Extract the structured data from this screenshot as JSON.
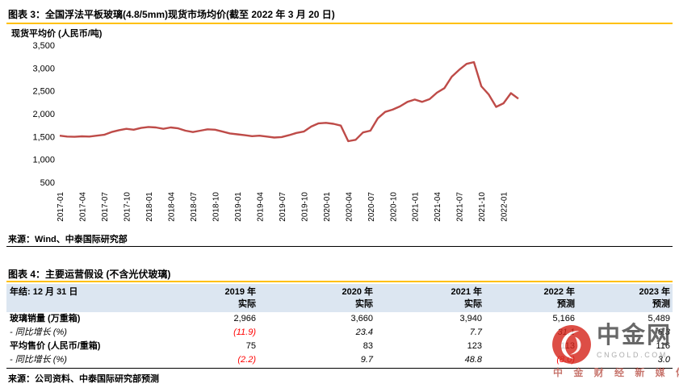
{
  "colors": {
    "line": "#BE4B48",
    "rule_yellow": "#FFC000",
    "table_header_bg": "#DCE6F1",
    "negative": "#FF0000"
  },
  "figure3": {
    "title": "图表 3：全国浮法平板玻璃(4.8/5mm)现货市场均价(截至 2022 年 3 月 20 日)",
    "axis_label": "现货平均价 (人民币/吨)",
    "source": "来源：Wind、中泰国际研究部"
  },
  "chart_data": {
    "type": "line",
    "title": "全国浮法平板玻璃(4.8/5mm)现货市场均价",
    "xlabel": "",
    "ylabel": "现货平均价 (人民币/吨)",
    "ylim": [
      500,
      3500
    ],
    "yticks": [
      3500,
      3000,
      2500,
      2000,
      1500,
      1000,
      500
    ],
    "grid": false,
    "legend": "none",
    "xticks": [
      "2017-01",
      "2017-04",
      "2017-07",
      "2017-10",
      "2018-01",
      "2018-04",
      "2018-07",
      "2018-10",
      "2019-01",
      "2019-04",
      "2019-07",
      "2019-10",
      "2020-01",
      "2020-04",
      "2020-07",
      "2020-10",
      "2021-01",
      "2021-04",
      "2021-07",
      "2021-10",
      "2022-01"
    ],
    "xtick_step": 3,
    "x": [
      "2017-01",
      "2017-02",
      "2017-03",
      "2017-04",
      "2017-05",
      "2017-06",
      "2017-07",
      "2017-08",
      "2017-09",
      "2017-10",
      "2017-11",
      "2017-12",
      "2018-01",
      "2018-02",
      "2018-03",
      "2018-04",
      "2018-05",
      "2018-06",
      "2018-07",
      "2018-08",
      "2018-09",
      "2018-10",
      "2018-11",
      "2018-12",
      "2019-01",
      "2019-02",
      "2019-03",
      "2019-04",
      "2019-05",
      "2019-06",
      "2019-07",
      "2019-08",
      "2019-09",
      "2019-10",
      "2019-11",
      "2019-12",
      "2020-01",
      "2020-02",
      "2020-03",
      "2020-04",
      "2020-05",
      "2020-06",
      "2020-07",
      "2020-08",
      "2020-09",
      "2020-10",
      "2020-11",
      "2020-12",
      "2021-01",
      "2021-02",
      "2021-03",
      "2021-04",
      "2021-05",
      "2021-06",
      "2021-07",
      "2021-08",
      "2021-09",
      "2021-10",
      "2021-11",
      "2021-12",
      "2022-01",
      "2022-02",
      "2022-03"
    ],
    "values": [
      1520,
      1500,
      1495,
      1505,
      1500,
      1520,
      1540,
      1600,
      1640,
      1670,
      1650,
      1690,
      1710,
      1700,
      1670,
      1700,
      1680,
      1630,
      1600,
      1630,
      1660,
      1650,
      1610,
      1570,
      1550,
      1530,
      1510,
      1520,
      1500,
      1480,
      1490,
      1530,
      1580,
      1610,
      1720,
      1790,
      1800,
      1780,
      1740,
      1400,
      1430,
      1590,
      1630,
      1900,
      2040,
      2090,
      2160,
      2260,
      2310,
      2260,
      2320,
      2460,
      2560,
      2810,
      2960,
      3090,
      3130,
      2600,
      2420,
      2150,
      2230,
      2450,
      2330
    ]
  },
  "figure4": {
    "title": "图表 4：主要运营假设 (不含光伏玻璃)",
    "source": "来源：公司资料、中泰国际研究部预测",
    "table": {
      "header_label": "年结: 12 月 31 日",
      "columns": [
        {
          "year": "2019 年",
          "type": "实际"
        },
        {
          "year": "2020 年",
          "type": "实际"
        },
        {
          "year": "2021 年",
          "type": "实际"
        },
        {
          "year": "2022 年",
          "type": "预测"
        },
        {
          "year": "2023 年",
          "type": "预测"
        }
      ],
      "rows": [
        {
          "label": "玻璃销量 (万重箱)",
          "style": "bold",
          "values": [
            "2,966",
            "3,660",
            "3,940",
            "5,166",
            "5,489"
          ]
        },
        {
          "label": "-  同比增长 (%)",
          "style": "italic",
          "values": [
            "(11.9)",
            "23.4",
            "7.7",
            "31.1",
            "6.3"
          ]
        },
        {
          "label": "平均售价 (人民币/重箱)",
          "style": "bold",
          "values": [
            "75",
            "83",
            "123",
            "113",
            "116"
          ]
        },
        {
          "label": "-  同比增长 (%)",
          "style": "italic",
          "values": [
            "(2.2)",
            "9.7",
            "48.8",
            "(8.0)",
            "3.0"
          ]
        }
      ]
    }
  },
  "watermark": {
    "name": "中金网",
    "domain": "CNGOLD.COM",
    "tagline": "中 金 财 经 新 媒 体"
  }
}
